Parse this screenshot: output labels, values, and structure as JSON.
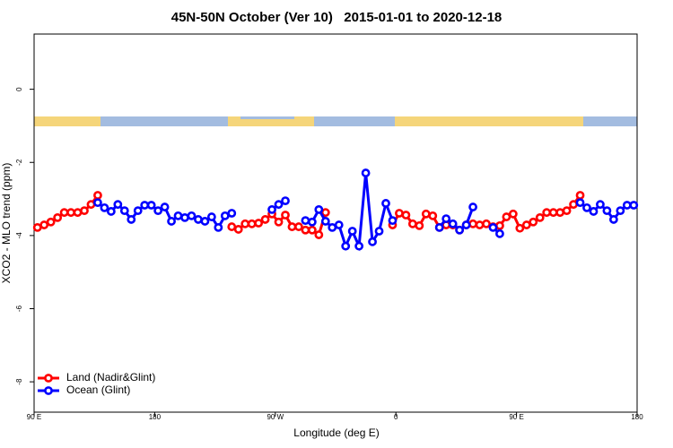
{
  "chart_data": {
    "type": "line",
    "title": "45N-50N October (Ver 10)   2015-01-01 to 2020-12-18",
    "xlabel": "Longitude (deg E)",
    "ylabel": "XCO2 - MLO trend (ppm)",
    "xlim": [
      90,
      540
    ],
    "ylim": [
      -8.83,
      1.51
    ],
    "xticks": [
      {
        "value": 90,
        "label": "90 E"
      },
      {
        "value": 180,
        "label": "180"
      },
      {
        "value": 270,
        "label": "90 W"
      },
      {
        "value": 360,
        "label": "0"
      },
      {
        "value": 450,
        "label": "90 E"
      },
      {
        "value": 540,
        "label": "180"
      }
    ],
    "yticks": [
      0,
      -2,
      -4,
      -6,
      -8
    ],
    "legend": "bottom left",
    "series": [
      {
        "name": "Land (Nadir&Glint)",
        "color": "#ff0000",
        "x": [
          92.5,
          97.5,
          102.5,
          107.5,
          112.5,
          117.5,
          122.5,
          127.5,
          132.5,
          137.5,
          187.5,
          237.5,
          242.5,
          247.5,
          252.5,
          257.5,
          262.5,
          267.5,
          272.5,
          277.5,
          282.5,
          287.5,
          292.5,
          297.5,
          302.5,
          307.5,
          332.5,
          357.5,
          362.5,
          367.5,
          372.5,
          377.5,
          382.5,
          387.5,
          392.5,
          397.5,
          402.5,
          407.5,
          412.5,
          417.5,
          422.5,
          427.5,
          432.5,
          437.5,
          442.5,
          447.5,
          452.5,
          457.5,
          462.5,
          467.5,
          472.5,
          477.5,
          482.5,
          487.5,
          492.5,
          497.5
        ],
        "values": [
          -3.78,
          -3.71,
          -3.63,
          -3.51,
          -3.37,
          -3.37,
          -3.37,
          -3.32,
          -3.15,
          -2.9,
          null,
          -3.76,
          -3.83,
          -3.68,
          -3.68,
          -3.66,
          -3.56,
          -3.41,
          -3.63,
          -3.44,
          -3.76,
          -3.76,
          -3.85,
          -3.85,
          -3.98,
          -3.37,
          null,
          -3.71,
          -3.39,
          -3.44,
          -3.68,
          -3.73,
          -3.41,
          -3.46,
          -3.78,
          -3.71,
          -3.71,
          -3.85,
          -3.71,
          -3.68,
          -3.71,
          -3.68,
          -3.76,
          -3.73,
          -3.49,
          -3.41,
          -3.8,
          -3.71,
          -3.63,
          -3.51,
          -3.37,
          -3.37,
          -3.37,
          -3.32,
          -3.15,
          -2.9
        ]
      },
      {
        "name": "Ocean (Glint)",
        "color": "#0000ff",
        "x": [
          137.5,
          142.5,
          147.5,
          152.5,
          157.5,
          162.5,
          167.5,
          172.5,
          177.5,
          182.5,
          187.5,
          192.5,
          197.5,
          202.5,
          207.5,
          212.5,
          217.5,
          222.5,
          227.5,
          232.5,
          237.5,
          252.5,
          267.5,
          272.5,
          277.5,
          282.5,
          292.5,
          297.5,
          302.5,
          307.5,
          312.5,
          317.5,
          322.5,
          327.5,
          332.5,
          337.5,
          342.5,
          347.5,
          352.5,
          357.5,
          362.5,
          392.5,
          397.5,
          402.5,
          407.5,
          412.5,
          417.5,
          427.5,
          432.5,
          437.5,
          442.5,
          497.5,
          502.5,
          507.5,
          512.5,
          517.5,
          522.5,
          527.5,
          532.5,
          537.5
        ],
        "values": [
          -3.1,
          -3.24,
          -3.34,
          -3.15,
          -3.32,
          -3.56,
          -3.32,
          -3.17,
          -3.17,
          -3.32,
          -3.22,
          -3.61,
          -3.46,
          -3.51,
          -3.46,
          -3.56,
          -3.61,
          -3.49,
          -3.78,
          -3.46,
          -3.39,
          null,
          -3.29,
          -3.15,
          -3.05,
          null,
          -3.59,
          -3.63,
          -3.29,
          -3.61,
          -3.78,
          -3.71,
          -4.29,
          -3.88,
          -4.29,
          -2.29,
          -4.17,
          -3.88,
          -3.12,
          -3.59,
          null,
          -3.78,
          -3.54,
          -3.68,
          -3.85,
          -3.71,
          -3.22,
          null,
          -3.78,
          -3.95,
          null,
          -3.1,
          -3.24,
          -3.34,
          -3.15,
          -3.32,
          -3.56,
          -3.32,
          -3.17,
          -3.17
        ]
      }
    ]
  }
}
